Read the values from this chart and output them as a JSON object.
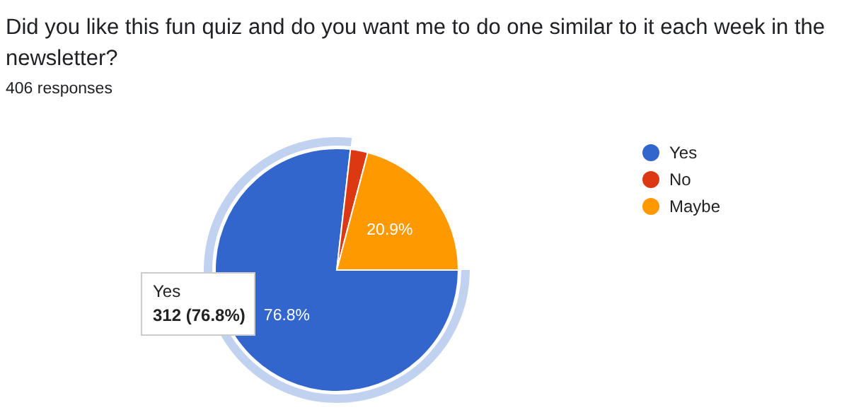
{
  "chart_data": {
    "type": "pie",
    "title": "Did you like this fun quiz and do you want me to do one similar to it each week in the newsletter?",
    "subtitle": "406 responses",
    "categories": [
      "Yes",
      "No",
      "Maybe"
    ],
    "values": [
      76.8,
      2.3,
      20.9
    ],
    "colors": [
      "#3366cc",
      "#dc3912",
      "#ff9900"
    ],
    "value_labels": [
      "76.8%",
      null,
      "20.9%"
    ],
    "annotations": [
      "Yes",
      "312 (76.8%)"
    ],
    "legend": "right"
  }
}
